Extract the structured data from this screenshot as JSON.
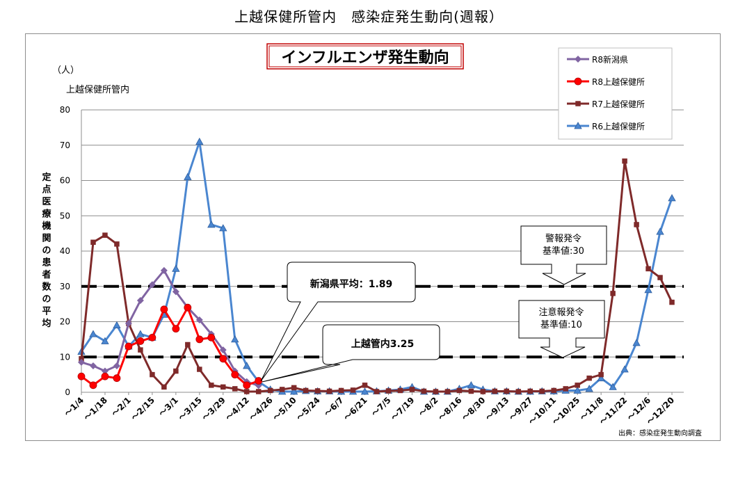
{
  "page_title": "上越保健所管内　感染症発生動向(週報）",
  "chart_data": {
    "type": "line",
    "title": "インフルエンザ発生動向",
    "unit_label": "（人）",
    "region_label": "上越保健所管内",
    "ylabel": "定点医療機関の患者数の平均",
    "ylim": [
      0,
      80
    ],
    "yticks": [
      0,
      10,
      20,
      30,
      40,
      50,
      60,
      70,
      80
    ],
    "source_note": "出典：感染症発生動向調査",
    "x_count": 52,
    "tick_labels": [
      "～1/4",
      "～1/18",
      "～2/1",
      "～2/15",
      "～3/1",
      "～3/15",
      "～3/29",
      "～4/12",
      "～4/26",
      "～5/10",
      "～5/24",
      "～6/7",
      "～6/21",
      "～7/5",
      "～7/19",
      "～8/2",
      "～8/16",
      "～8/30",
      "～9/13",
      "～9/27",
      "～10/11",
      "～10/25",
      "～11/8",
      "～11/22",
      "～12/6",
      "～12/20"
    ],
    "thresholds": [
      {
        "name": "警報発令基準値",
        "value": 30,
        "label_line1": "警報発令",
        "label_line2": "基準値:30"
      },
      {
        "name": "注意報発令基準値",
        "value": 10,
        "label_line1": "注意報発令",
        "label_line2": "基準値:10"
      }
    ],
    "callouts": [
      {
        "text": "新潟県平均：1.89"
      },
      {
        "text": "上越管内3.25"
      }
    ],
    "series": [
      {
        "name": "R8新潟県",
        "color": "#8064a2",
        "marker": "diamond",
        "values": [
          8.5,
          7.5,
          6.0,
          7.5,
          19.5,
          26.0,
          30.5,
          34.5,
          28.5,
          24.0,
          20.5,
          16.5,
          12.0,
          6.0,
          3.0,
          1.89
        ]
      },
      {
        "name": "R8上越保健所",
        "color": "#ff0000",
        "marker": "circle",
        "values": [
          4.5,
          2.0,
          4.5,
          4.0,
          13.0,
          14.5,
          15.5,
          23.5,
          18.0,
          24.0,
          15.0,
          15.5,
          9.5,
          5.0,
          2.0,
          3.25
        ]
      },
      {
        "name": "R7上越保健所",
        "color": "#7f2a2a",
        "marker": "square",
        "values": [
          9.5,
          42.5,
          44.5,
          42.0,
          19.5,
          12.0,
          5.0,
          1.5,
          6.0,
          13.5,
          6.5,
          2.0,
          1.5,
          1.0,
          0.2,
          0.2,
          0.5,
          0.8,
          1.3,
          0.5,
          0.4,
          0.3,
          0.5,
          0.6,
          2.0,
          0.2,
          0.4,
          0.5,
          0.8,
          0.3,
          0.2,
          0.2,
          0.5,
          0.3,
          0.2,
          0.3,
          0.3,
          0.2,
          0.3,
          0.3,
          0.5,
          1.0,
          2.0,
          4.0,
          5.0,
          28.0,
          65.5,
          47.5,
          35.0,
          32.5,
          25.5
        ]
      },
      {
        "name": "R6上越保健所",
        "color": "#4a86d0",
        "marker": "triangle",
        "values": [
          11.5,
          16.5,
          14.5,
          19.0,
          13.0,
          16.5,
          15.5,
          22.0,
          35.0,
          61.0,
          71.0,
          47.5,
          46.5,
          15.0,
          7.5,
          3.0,
          0.8,
          0.2,
          0.2,
          0.4,
          0.3,
          0.3,
          0.2,
          0.2,
          0.2,
          0.3,
          0.5,
          0.8,
          1.5,
          0.2,
          0.2,
          0.2,
          1.0,
          2.0,
          0.8,
          0.3,
          0.3,
          0.2,
          0.2,
          0.3,
          0.3,
          0.5,
          0.5,
          1.0,
          4.0,
          1.5,
          6.5,
          14.0,
          29.0,
          45.5,
          55.0
        ]
      }
    ]
  }
}
